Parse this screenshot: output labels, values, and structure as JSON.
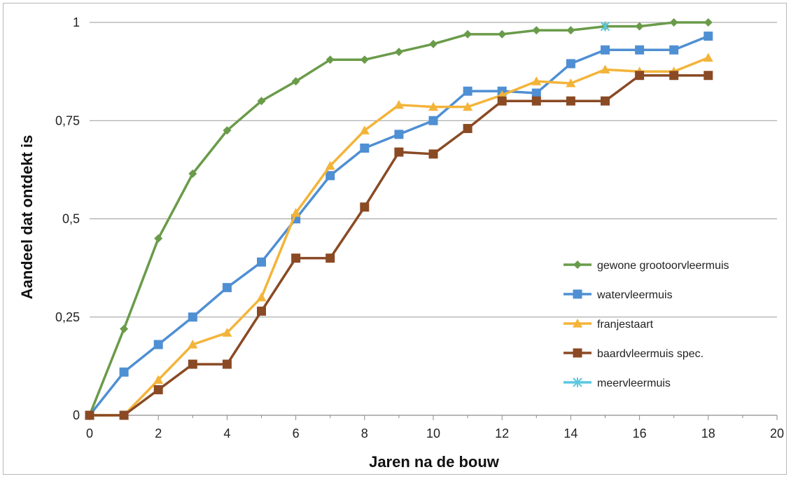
{
  "chart_data": {
    "type": "line",
    "title": "",
    "xlabel": "Jaren na de bouw",
    "ylabel": "Aandeel dat ontdekt is",
    "xlim": [
      0,
      20
    ],
    "ylim": [
      0,
      1
    ],
    "x_ticks": [
      0,
      2,
      4,
      6,
      8,
      10,
      12,
      14,
      16,
      18,
      20
    ],
    "x_tick_labels": [
      "0",
      "2",
      "4",
      "6",
      "8",
      "10",
      "12",
      "14",
      "16",
      "18",
      "20"
    ],
    "y_ticks": [
      0,
      0.25,
      0.5,
      0.75,
      1
    ],
    "y_tick_labels": [
      "0",
      "0,25",
      "0,5",
      "0,75",
      "1"
    ],
    "grid": "horizontal",
    "legend_position": "right",
    "series": [
      {
        "name": "gewone grootoorvleermuis",
        "color": "#6a9b4a",
        "marker": "diamond",
        "x": [
          0,
          1,
          2,
          3,
          4,
          5,
          6,
          7,
          8,
          9,
          10,
          11,
          12,
          13,
          14,
          15,
          16,
          17,
          18
        ],
        "values": [
          0,
          0.22,
          0.45,
          0.615,
          0.725,
          0.8,
          0.85,
          0.905,
          0.905,
          0.925,
          0.945,
          0.97,
          0.97,
          0.98,
          0.98,
          0.99,
          0.99,
          1.0,
          1.0
        ]
      },
      {
        "name": "watervleermuis",
        "color": "#4f8fd3",
        "marker": "square",
        "x": [
          0,
          1,
          2,
          3,
          4,
          5,
          6,
          7,
          8,
          9,
          10,
          11,
          12,
          13,
          14,
          15,
          16,
          17,
          18
        ],
        "values": [
          0,
          0.11,
          0.18,
          0.25,
          0.325,
          0.39,
          0.5,
          0.61,
          0.68,
          0.715,
          0.75,
          0.825,
          0.825,
          0.82,
          0.895,
          0.93,
          0.93,
          0.93,
          0.965
        ]
      },
      {
        "name": "franjestaart",
        "color": "#f3b43a",
        "marker": "triangle",
        "x": [
          0,
          1,
          2,
          3,
          4,
          5,
          6,
          7,
          8,
          9,
          10,
          11,
          12,
          13,
          14,
          15,
          16,
          17,
          18
        ],
        "values": [
          0,
          0,
          0.09,
          0.18,
          0.21,
          0.3,
          0.515,
          0.635,
          0.725,
          0.79,
          0.785,
          0.785,
          0.815,
          0.85,
          0.845,
          0.88,
          0.875,
          0.875,
          0.91
        ]
      },
      {
        "name": "baardvleermuis spec.",
        "color": "#8a4a24",
        "marker": "square",
        "x": [
          0,
          1,
          2,
          3,
          4,
          5,
          6,
          7,
          8,
          9,
          10,
          11,
          12,
          13,
          14,
          15,
          16,
          17,
          18
        ],
        "values": [
          0,
          0,
          0.065,
          0.13,
          0.13,
          0.265,
          0.4,
          0.4,
          0.53,
          0.67,
          0.665,
          0.73,
          0.8,
          0.8,
          0.8,
          0.8,
          0.865,
          0.865,
          0.865
        ]
      },
      {
        "name": "meervleermuis",
        "color": "#5bc8e0",
        "marker": "star",
        "x": [
          15
        ],
        "values": [
          0.99
        ]
      }
    ]
  }
}
